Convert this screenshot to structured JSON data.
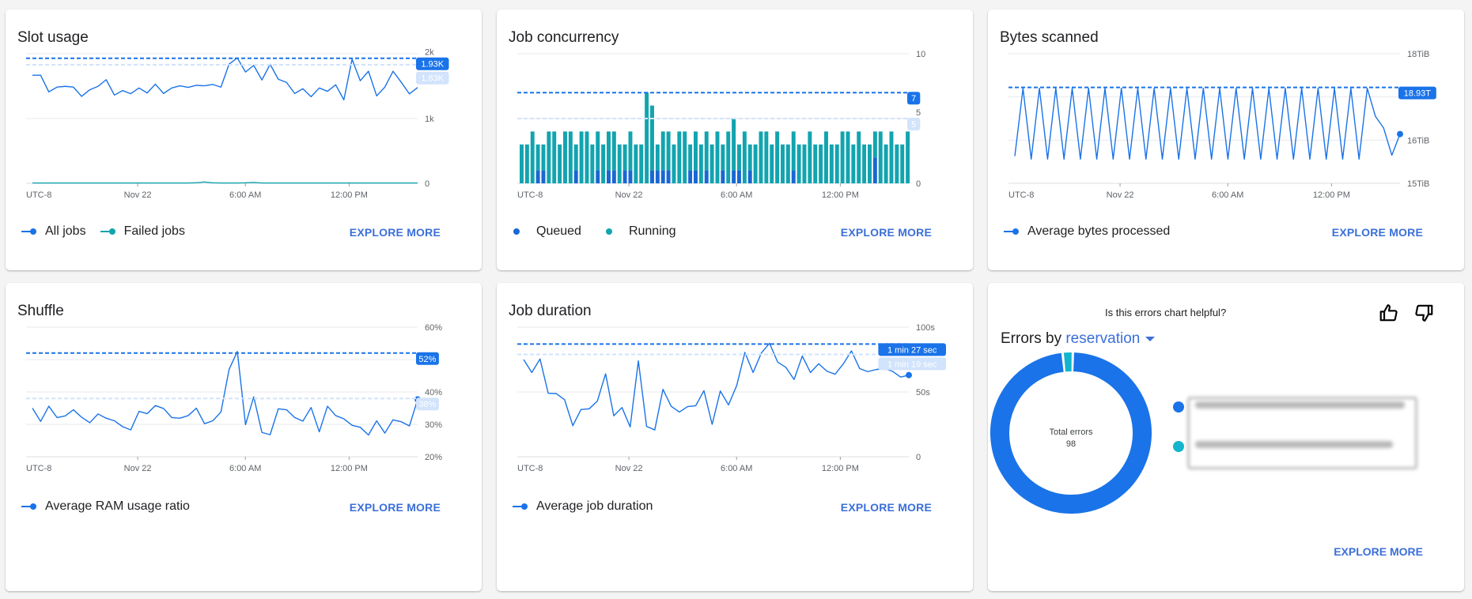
{
  "colors": {
    "blue": "#1a73e8",
    "teal": "#12a4af",
    "cyan": "#12b5cb",
    "light_blue": "#d2e3fc"
  },
  "explore_label": "EXPLORE MORE",
  "cards": [
    {
      "title": "Slot usage",
      "legend": [
        "All jobs",
        "Failed jobs"
      ]
    },
    {
      "title": "Job concurrency",
      "legend": [
        "Queued",
        "Running"
      ]
    },
    {
      "title": "Bytes scanned",
      "legend": [
        "Average bytes processed"
      ]
    },
    {
      "title": "Shuffle",
      "legend": [
        "Average RAM usage ratio"
      ]
    },
    {
      "title": "Job duration",
      "legend": [
        "Average job duration"
      ]
    }
  ],
  "errors_card": {
    "feedback_question": "Is this errors chart helpful?",
    "thumbs_up_icon": "thumbs-up-icon",
    "thumbs_down_icon": "thumbs-down-icon",
    "title_prefix": "Errors by",
    "dimension": "reservation",
    "total_label": "Total errors",
    "total_value": "98"
  },
  "chart_data": [
    {
      "type": "line",
      "x_tick_labels": [
        "UTC-8",
        "Nov 22",
        "6:00 AM",
        "12:00 PM"
      ],
      "ylim": [
        0,
        2000
      ],
      "y_ticks": [
        {
          "value": 0,
          "label": "0"
        },
        {
          "value": 1000,
          "label": "1k"
        },
        {
          "value": 2000,
          "label": "2k"
        }
      ],
      "reference_lines": [
        {
          "kind": "max",
          "value": 1930,
          "label": "1.93K"
        },
        {
          "kind": "average",
          "value": 1830,
          "label": "1.83K"
        }
      ],
      "series": [
        {
          "name": "All jobs",
          "color": "#1a73e8",
          "values": [
            1669,
            1669,
            1411,
            1485,
            1497,
            1485,
            1342,
            1444,
            1497,
            1599,
            1362,
            1432,
            1383,
            1472,
            1395,
            1530,
            1387,
            1472,
            1505,
            1481,
            1513,
            1505,
            1526,
            1485,
            1841,
            1935,
            1718,
            1820,
            1595,
            1837,
            1607,
            1558,
            1387,
            1460,
            1337,
            1472,
            1420,
            1521,
            1288,
            1914,
            1583,
            1730,
            1350,
            1485,
            1730,
            1560,
            1380,
            1480
          ]
        },
        {
          "name": "Failed jobs",
          "color": "#12a4af",
          "values": [
            5,
            5,
            5,
            5,
            5,
            5,
            5,
            5,
            5,
            5,
            5,
            5,
            5,
            5,
            5,
            5,
            5,
            5,
            5,
            5,
            10,
            20,
            8,
            5,
            5,
            5,
            8,
            15,
            5,
            5,
            5,
            5,
            5,
            5,
            5,
            5,
            5,
            5,
            5,
            5,
            5,
            5,
            5,
            5,
            5,
            5,
            5,
            5
          ]
        }
      ]
    },
    {
      "type": "bar",
      "stacked": true,
      "x_tick_labels": [
        "UTC-8",
        "Nov 22",
        "6:00 AM",
        "12:00 PM"
      ],
      "ylim": [
        0,
        10
      ],
      "y_ticks": [
        {
          "value": 0,
          "label": "0"
        },
        {
          "value": 5,
          "label": "5"
        },
        {
          "value": 10,
          "label": "10"
        }
      ],
      "reference_lines": [
        {
          "kind": "max",
          "value": 7,
          "label": "7"
        },
        {
          "kind": "average",
          "value": 5,
          "label": "5"
        }
      ],
      "series": [
        {
          "name": "Queued",
          "color": "#1a67d2",
          "values": [
            0,
            0,
            0,
            1,
            1,
            0,
            0,
            0,
            0,
            0,
            1,
            0,
            0,
            0,
            1,
            0,
            1,
            1,
            0,
            1,
            1,
            0,
            0,
            0,
            1,
            1,
            1,
            1,
            0,
            0,
            0,
            1,
            1,
            0,
            1,
            0,
            0,
            1,
            0,
            1,
            1,
            0,
            1,
            0,
            0,
            0,
            0,
            0,
            0,
            0,
            1,
            0,
            0,
            0,
            0,
            0,
            0,
            0,
            0,
            0,
            0,
            0,
            0,
            0,
            0,
            2,
            0,
            0,
            0,
            0,
            0,
            0
          ]
        },
        {
          "name": "Running",
          "color": "#12a4af",
          "values": [
            3,
            3,
            4,
            2,
            2,
            4,
            4,
            3,
            4,
            4,
            2,
            4,
            4,
            3,
            3,
            3,
            3,
            3,
            3,
            2,
            3,
            3,
            3,
            7,
            5,
            2,
            3,
            3,
            3,
            4,
            4,
            2,
            3,
            3,
            3,
            3,
            4,
            2,
            4,
            4,
            2,
            4,
            2,
            3,
            4,
            4,
            3,
            4,
            3,
            3,
            3,
            3,
            3,
            4,
            3,
            3,
            4,
            3,
            3,
            4,
            4,
            3,
            4,
            3,
            3,
            2,
            4,
            3,
            4,
            3,
            3,
            4
          ]
        }
      ]
    },
    {
      "type": "line",
      "x_tick_labels": [
        "UTC-8",
        "Nov 22",
        "6:00 AM",
        "12:00 PM"
      ],
      "ylim": [
        15,
        18
      ],
      "y_ticks": [
        {
          "value": 15,
          "label": "15TiB"
        },
        {
          "value": 16,
          "label": "16TiB"
        },
        {
          "value": 17,
          "label": ""
        },
        {
          "value": 18,
          "label": "18TiB"
        }
      ],
      "reference_lines": [
        {
          "kind": "max",
          "value": 17.22,
          "label": "18.93T"
        }
      ],
      "end_marker": true,
      "series": [
        {
          "name": "Average bytes processed",
          "color": "#1a73e8",
          "values": [
            15.63,
            17.2,
            15.56,
            17.2,
            15.56,
            17.2,
            15.56,
            17.2,
            15.56,
            17.2,
            15.56,
            17.2,
            15.56,
            17.2,
            15.56,
            17.2,
            15.56,
            17.2,
            15.56,
            17.2,
            15.56,
            17.2,
            15.56,
            17.2,
            15.56,
            17.2,
            15.56,
            17.2,
            15.56,
            17.2,
            15.56,
            17.2,
            15.56,
            17.2,
            15.56,
            17.2,
            15.56,
            17.2,
            15.56,
            17.2,
            15.56,
            17.2,
            15.56,
            17.2,
            16.55,
            16.28,
            15.65,
            16.14
          ]
        }
      ]
    },
    {
      "type": "line",
      "x_tick_labels": [
        "UTC-8",
        "Nov 22",
        "6:00 AM",
        "12:00 PM"
      ],
      "ylim": [
        20,
        60
      ],
      "y_ticks": [
        {
          "value": 20,
          "label": "20%"
        },
        {
          "value": 30,
          "label": "30%"
        },
        {
          "value": 40,
          "label": "40%"
        },
        {
          "value": 50,
          "label": ""
        },
        {
          "value": 60,
          "label": "60%"
        }
      ],
      "reference_lines": [
        {
          "kind": "max",
          "value": 52,
          "label": "52%"
        },
        {
          "kind": "average",
          "value": 38,
          "label": "38%"
        }
      ],
      "end_marker": true,
      "series": [
        {
          "name": "Average RAM usage ratio",
          "color": "#1a73e8",
          "values": [
            35,
            30.9,
            35.6,
            32.1,
            32.6,
            34.5,
            32.2,
            30.5,
            33.2,
            31.9,
            31.1,
            29.3,
            28.3,
            34,
            33.3,
            35.8,
            34.9,
            32.1,
            31.9,
            32.7,
            35,
            30.2,
            31.1,
            33.8,
            47,
            52.5,
            29.9,
            38.5,
            27.5,
            26.8,
            34.8,
            34.5,
            32.1,
            31,
            35.2,
            27.7,
            35.6,
            32.7,
            31.7,
            29.7,
            29.1,
            26.7,
            31.1,
            27.3,
            31.4,
            30.8,
            29.5,
            37.7
          ]
        }
      ]
    },
    {
      "type": "line",
      "x_tick_labels": [
        "UTC-8",
        "Nov 22",
        "6:00 AM",
        "12:00 PM"
      ],
      "ylim": [
        0,
        100
      ],
      "y_ticks": [
        {
          "value": 0,
          "label": "0"
        },
        {
          "value": 50,
          "label": "50s"
        },
        {
          "value": 100,
          "label": "100s"
        }
      ],
      "reference_lines": [
        {
          "kind": "max",
          "value": 87,
          "label": "1 min 27 sec"
        },
        {
          "kind": "average",
          "value": 79,
          "label": "1 min 19 sec"
        }
      ],
      "end_marker": true,
      "series": [
        {
          "name": "Average job duration",
          "color": "#1a73e8",
          "values": [
            75,
            65,
            75.5,
            49,
            48.7,
            44,
            24,
            36.5,
            37,
            43,
            64,
            31.6,
            38,
            23,
            74,
            23.5,
            20.7,
            52,
            39,
            34.5,
            38.7,
            39.4,
            51,
            25,
            50.7,
            40,
            55,
            80.5,
            65,
            80,
            87.6,
            73,
            69,
            59.6,
            77.7,
            65,
            71.8,
            66,
            63.7,
            71.6,
            81.7,
            68,
            65.7,
            67.3,
            68,
            66,
            61.5,
            63
          ]
        }
      ]
    },
    {
      "type": "pie",
      "donut": true,
      "total": 98,
      "slices": [
        {
          "value": 2,
          "color": "#12b5cb"
        },
        {
          "value": 96,
          "color": "#1a73e8"
        }
      ]
    }
  ]
}
